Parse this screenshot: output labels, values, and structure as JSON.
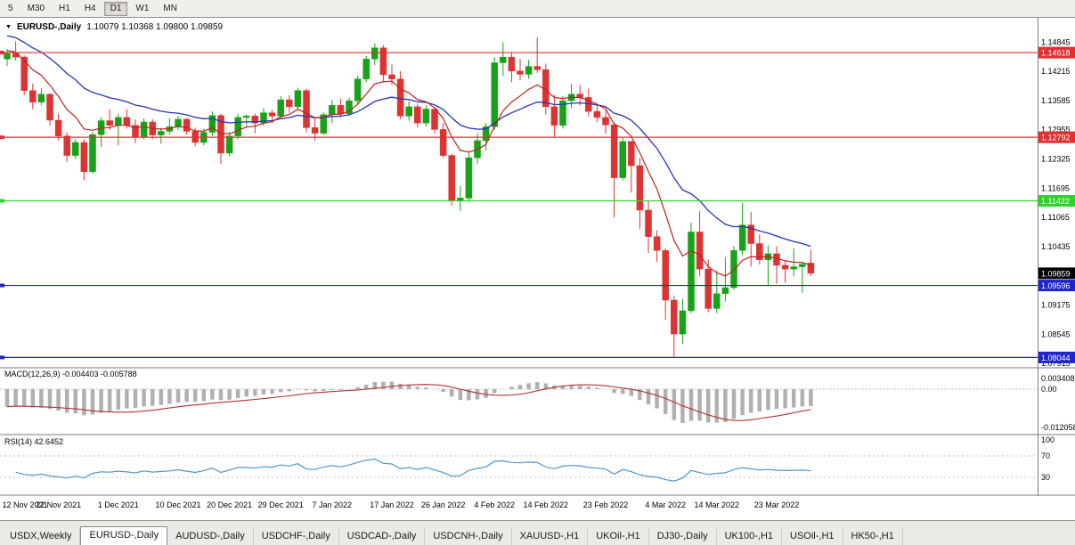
{
  "toolbar": {
    "timeframes": [
      "5",
      "M30",
      "H1",
      "H4",
      "D1",
      "W1",
      "MN"
    ],
    "active": "D1"
  },
  "chart": {
    "symbol_label": "EURUSD-,Daily",
    "ohlc_label": "1.10079 1.10368 1.09800 1.09859",
    "up_color": "#17a317",
    "down_color": "#dd3333",
    "axis": {
      "price_max": 1.1533,
      "price_min": 1.0784,
      "price_ticks": [
        "1.14845",
        "1.14215",
        "1.13585",
        "1.12955",
        "1.12325",
        "1.11695",
        "1.11065",
        "1.10435",
        "1.09805",
        "1.09175",
        "1.08545",
        "1.07915"
      ]
    },
    "levels": [
      {
        "price": 1.14618,
        "label": "1.14618",
        "color": "#e03030"
      },
      {
        "price": 1.12792,
        "label": "1.12792",
        "color": "#e03030"
      },
      {
        "price": 1.11422,
        "label": "1.11422",
        "color": "#2fd32f"
      },
      {
        "price": 1.09596,
        "label": "1.09596",
        "color": "#1f24cc"
      },
      {
        "price": 1.08044,
        "label": "1.08044",
        "color": "#1f24cc"
      }
    ],
    "current_price": {
      "value": 1.09859,
      "label": "1.09859",
      "bg": "#000000"
    },
    "ma": {
      "fast": {
        "period": 8,
        "seed": 1.1468,
        "color": "#c02020"
      },
      "slow": {
        "period": 21,
        "seed": 1.1502,
        "color": "#2633b8"
      }
    },
    "dates": [
      {
        "label": "12 Nov 2021",
        "i": 0
      },
      {
        "label": "22 Nov 2021",
        "i": 6
      },
      {
        "label": "1 Dec 2021",
        "i": 13
      },
      {
        "label": "10 Dec 2021",
        "i": 20
      },
      {
        "label": "20 Dec 2021",
        "i": 26
      },
      {
        "label": "29 Dec 2021",
        "i": 32
      },
      {
        "label": "7 Jan 2022",
        "i": 38
      },
      {
        "label": "17 Jan 2022",
        "i": 45
      },
      {
        "label": "26 Jan 2022",
        "i": 51
      },
      {
        "label": "4 Feb 2022",
        "i": 57
      },
      {
        "label": "14 Feb 2022",
        "i": 63
      },
      {
        "label": "23 Feb 2022",
        "i": 70
      },
      {
        "label": "4 Mar 2022",
        "i": 77
      },
      {
        "label": "14 Mar 2022",
        "i": 83
      },
      {
        "label": "23 Mar 2022",
        "i": 90
      }
    ],
    "candles": [
      [
        1.1448,
        1.1469,
        1.1433,
        1.146
      ],
      [
        1.146,
        1.1486,
        1.1445,
        1.1452
      ],
      [
        1.1452,
        1.1456,
        1.137,
        1.138
      ],
      [
        1.138,
        1.1395,
        1.134,
        1.1355
      ],
      [
        1.1355,
        1.1385,
        1.1348,
        1.1372
      ],
      [
        1.1372,
        1.1374,
        1.1305,
        1.1316
      ],
      [
        1.1316,
        1.133,
        1.1272,
        1.1282
      ],
      [
        1.1282,
        1.129,
        1.1226,
        1.124
      ],
      [
        1.124,
        1.1275,
        1.1232,
        1.1268
      ],
      [
        1.1268,
        1.1275,
        1.1186,
        1.1205
      ],
      [
        1.1205,
        1.129,
        1.12,
        1.1285
      ],
      [
        1.1285,
        1.1323,
        1.1258,
        1.1315
      ],
      [
        1.1315,
        1.134,
        1.1295,
        1.1305
      ],
      [
        1.1305,
        1.133,
        1.1262,
        1.1322
      ],
      [
        1.1322,
        1.134,
        1.1298,
        1.1305
      ],
      [
        1.1305,
        1.1318,
        1.1266,
        1.128
      ],
      [
        1.128,
        1.132,
        1.1275,
        1.1312
      ],
      [
        1.1312,
        1.1318,
        1.1275,
        1.1284
      ],
      [
        1.1284,
        1.13,
        1.1265,
        1.1292
      ],
      [
        1.1292,
        1.132,
        1.1285,
        1.1302
      ],
      [
        1.1302,
        1.1325,
        1.1295,
        1.1318
      ],
      [
        1.1318,
        1.132,
        1.1285,
        1.1292
      ],
      [
        1.1292,
        1.13,
        1.126,
        1.1268
      ],
      [
        1.1268,
        1.1298,
        1.1262,
        1.129
      ],
      [
        1.129,
        1.1335,
        1.1282,
        1.1326
      ],
      [
        1.1326,
        1.133,
        1.1222,
        1.1245
      ],
      [
        1.1245,
        1.129,
        1.1238,
        1.1282
      ],
      [
        1.1282,
        1.133,
        1.1275,
        1.1322
      ],
      [
        1.1322,
        1.1328,
        1.13,
        1.1325
      ],
      [
        1.1325,
        1.133,
        1.1288,
        1.131
      ],
      [
        1.131,
        1.1342,
        1.1304,
        1.1332
      ],
      [
        1.1332,
        1.1338,
        1.131,
        1.1325
      ],
      [
        1.1325,
        1.1368,
        1.132,
        1.136
      ],
      [
        1.136,
        1.137,
        1.1332,
        1.1345
      ],
      [
        1.1345,
        1.1386,
        1.134,
        1.138
      ],
      [
        1.138,
        1.1384,
        1.129,
        1.13
      ],
      [
        1.13,
        1.132,
        1.1272,
        1.1288
      ],
      [
        1.1288,
        1.1334,
        1.1284,
        1.1328
      ],
      [
        1.1328,
        1.136,
        1.131,
        1.1348
      ],
      [
        1.1348,
        1.1362,
        1.1322,
        1.133
      ],
      [
        1.133,
        1.1365,
        1.1325,
        1.1358
      ],
      [
        1.1358,
        1.1412,
        1.135,
        1.1405
      ],
      [
        1.1405,
        1.1455,
        1.1398,
        1.1448
      ],
      [
        1.1448,
        1.1482,
        1.1435,
        1.1472
      ],
      [
        1.1472,
        1.1478,
        1.1398,
        1.1414
      ],
      [
        1.1414,
        1.1436,
        1.1392,
        1.1405
      ],
      [
        1.1405,
        1.1422,
        1.1318,
        1.1325
      ],
      [
        1.1325,
        1.1357,
        1.1315,
        1.1345
      ],
      [
        1.1345,
        1.1352,
        1.13,
        1.131
      ],
      [
        1.131,
        1.1348,
        1.1302,
        1.134
      ],
      [
        1.134,
        1.1344,
        1.1288,
        1.1296
      ],
      [
        1.1296,
        1.131,
        1.1235,
        1.124
      ],
      [
        1.124,
        1.1244,
        1.1132,
        1.1142
      ],
      [
        1.1142,
        1.1174,
        1.112,
        1.1148
      ],
      [
        1.1148,
        1.1248,
        1.114,
        1.1235
      ],
      [
        1.1235,
        1.1288,
        1.1222,
        1.1272
      ],
      [
        1.1272,
        1.131,
        1.125,
        1.1302
      ],
      [
        1.1302,
        1.1452,
        1.1295,
        1.144
      ],
      [
        1.144,
        1.1484,
        1.1412,
        1.1452
      ],
      [
        1.1452,
        1.1462,
        1.1398,
        1.1422
      ],
      [
        1.1422,
        1.1448,
        1.1402,
        1.1415
      ],
      [
        1.1415,
        1.1446,
        1.1405,
        1.1432
      ],
      [
        1.1432,
        1.1495,
        1.1418,
        1.1425
      ],
      [
        1.1425,
        1.1438,
        1.1328,
        1.1345
      ],
      [
        1.1345,
        1.137,
        1.128,
        1.1305
      ],
      [
        1.1305,
        1.1368,
        1.1298,
        1.1358
      ],
      [
        1.1358,
        1.1395,
        1.1342,
        1.1372
      ],
      [
        1.1372,
        1.1392,
        1.1348,
        1.1365
      ],
      [
        1.1365,
        1.1384,
        1.1324,
        1.1335
      ],
      [
        1.1335,
        1.1348,
        1.1312,
        1.1322
      ],
      [
        1.1322,
        1.1336,
        1.1287,
        1.1306
      ],
      [
        1.1306,
        1.1311,
        1.1106,
        1.1192
      ],
      [
        1.1192,
        1.1278,
        1.1186,
        1.127
      ],
      [
        1.127,
        1.1272,
        1.116,
        1.1218
      ],
      [
        1.1218,
        1.1235,
        1.1082,
        1.1122
      ],
      [
        1.1122,
        1.1142,
        1.103,
        1.1065
      ],
      [
        1.1065,
        1.1078,
        1.101,
        1.1035
      ],
      [
        1.1035,
        1.104,
        1.0885,
        1.0928
      ],
      [
        1.0928,
        1.0938,
        1.0806,
        1.0855
      ],
      [
        1.0855,
        1.093,
        1.0834,
        1.0905
      ],
      [
        1.0905,
        1.1095,
        1.09,
        1.1075
      ],
      [
        1.1075,
        1.112,
        1.098,
        1.0995
      ],
      [
        1.0995,
        1.1015,
        1.0902,
        1.091
      ],
      [
        1.091,
        1.0992,
        1.09,
        1.0942
      ],
      [
        1.0942,
        1.102,
        1.0925,
        1.0955
      ],
      [
        1.0955,
        1.1045,
        1.095,
        1.1035
      ],
      [
        1.1035,
        1.1138,
        1.1025,
        1.109
      ],
      [
        1.109,
        1.1118,
        1.1,
        1.105
      ],
      [
        1.105,
        1.107,
        1.1005,
        1.1015
      ],
      [
        1.1015,
        1.1046,
        1.096,
        1.1028
      ],
      [
        1.1028,
        1.1044,
        1.0963,
        1.1003
      ],
      [
        1.1003,
        1.1014,
        1.0965,
        1.0995
      ],
      [
        1.0995,
        1.104,
        1.098,
        1.1
      ],
      [
        1.1,
        1.1008,
        1.0944,
        1.1005
      ],
      [
        1.10079,
        1.10368,
        1.098,
        1.09859
      ]
    ]
  },
  "macd": {
    "label": "MACD(12,26,9) -0.004403 -0.005788",
    "params": [
      12,
      26,
      9
    ],
    "seed_fast": 1.146,
    "seed_slow": 1.152,
    "range": [
      -0.0138,
      0.0048
    ],
    "axis_labels": [
      {
        "v": 0.003408,
        "t": "0.003408"
      },
      {
        "v": 0,
        "t": "0.00"
      },
      {
        "v": -0.012058,
        "t": "-0.012058"
      }
    ],
    "hist_color": "#b0b0b0",
    "signal_color": "#b03030"
  },
  "rsi": {
    "label": "RSI(14) 42.6452",
    "period": 14,
    "levels": [
      70,
      30
    ],
    "axis_labels": [
      {
        "v": 100,
        "t": "100"
      },
      {
        "v": 70,
        "t": "70"
      },
      {
        "v": 30,
        "t": "30"
      }
    ],
    "color": "#4f97cc",
    "seed_gain": 0.002,
    "seed_loss": 0.003
  },
  "tabs": {
    "items": [
      "USDX,Weekly",
      "EURUSD-,Daily",
      "AUDUSD-,Daily",
      "USDCHF-,Daily",
      "USDCAD-,Daily",
      "USDCNH-,Daily",
      "XAUUSD-,H1",
      "UKOil-,H1",
      "DJ30-,Daily",
      "UK100-,H1",
      "USOil-,H1",
      "HK50-,H1"
    ],
    "active": "EURUSD-,Daily"
  }
}
